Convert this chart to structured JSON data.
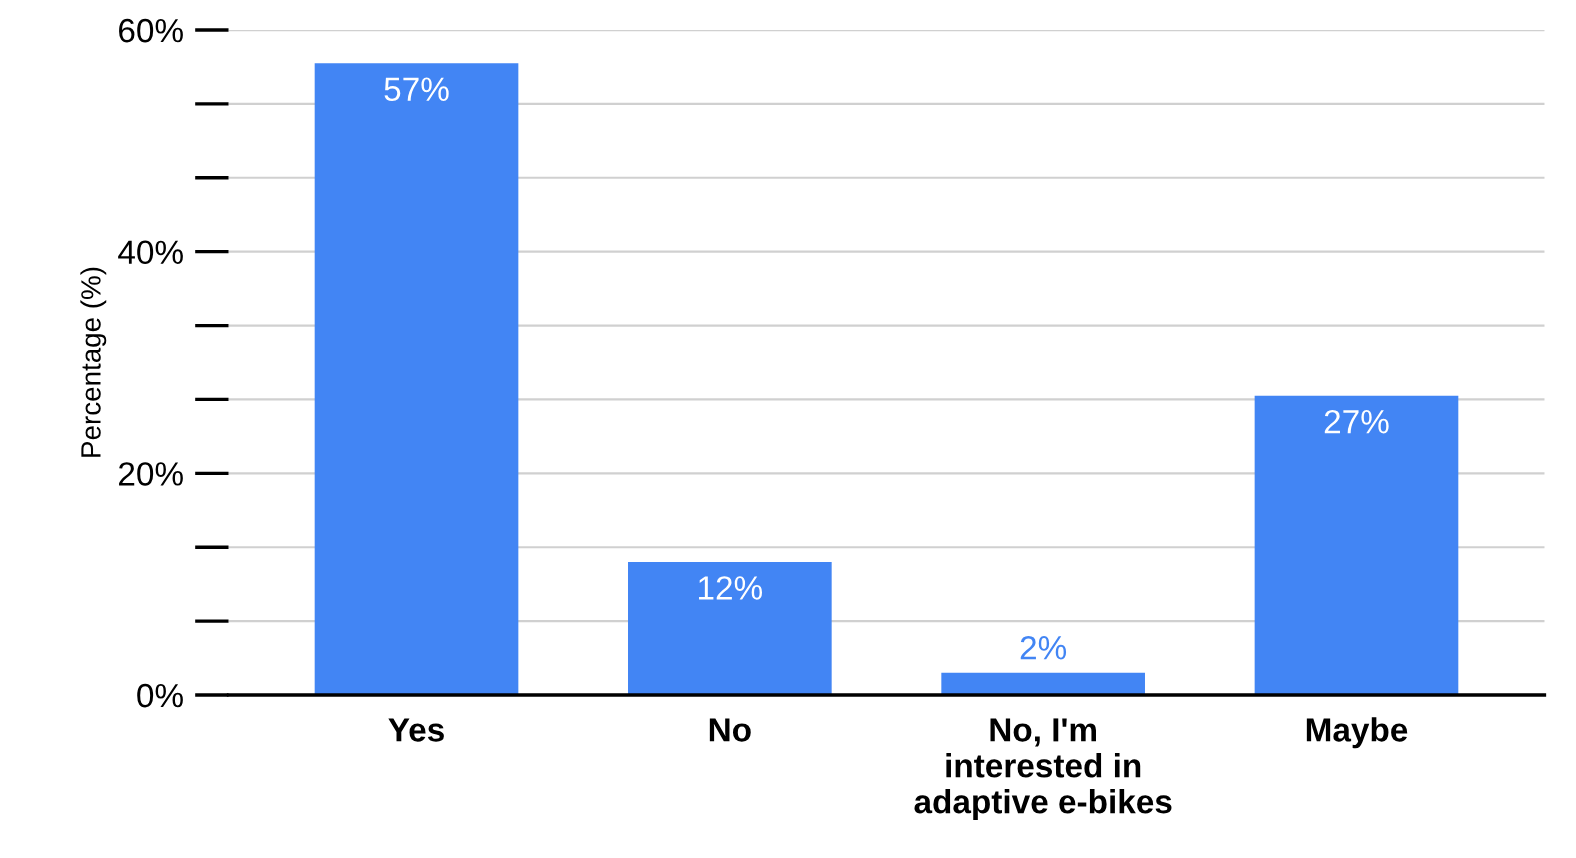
{
  "chart_data": {
    "type": "bar",
    "ylabel": "Percentage (%)",
    "categories": [
      "Yes",
      "No",
      "No, I'm\ninterested in\nadaptive e-bikes",
      "Maybe"
    ],
    "values": [
      57,
      12,
      2,
      27
    ],
    "value_labels": [
      "57%",
      "12%",
      "2%",
      "27%"
    ],
    "color": "#4285f4",
    "ylim": [
      0,
      60
    ],
    "yticks": [
      {
        "value": 0,
        "label": "0%"
      },
      {
        "value": 6.67,
        "label": null
      },
      {
        "value": 13.33,
        "label": null
      },
      {
        "value": 20,
        "label": "20%"
      },
      {
        "value": 26.67,
        "label": null
      },
      {
        "value": 33.33,
        "label": null
      },
      {
        "value": 40,
        "label": "40%"
      },
      {
        "value": 46.67,
        "label": null
      },
      {
        "value": 53.33,
        "label": null
      },
      {
        "value": 60,
        "label": "60%"
      }
    ],
    "grid": "y"
  }
}
